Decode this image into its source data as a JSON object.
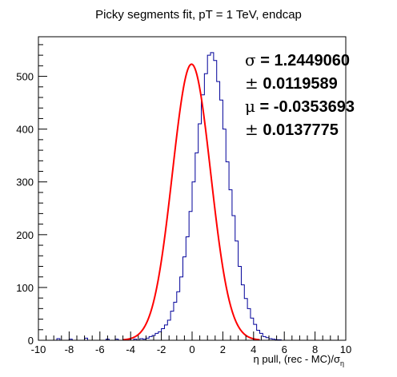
{
  "chart_data": {
    "type": "histogram",
    "title": "Picky segments fit, pT = 1 TeV, endcap",
    "xlabel": "η pull, (rec - MC)/σ",
    "xlabel_subscript": "η",
    "xlim": [
      -10,
      10
    ],
    "ylim": [
      0,
      575
    ],
    "x_ticks": [
      -10,
      -8,
      -6,
      -4,
      -2,
      0,
      2,
      4,
      6,
      8,
      10
    ],
    "x_tick_labels": [
      "-10",
      "-8",
      "-6",
      "-4",
      "-2",
      "0",
      "2",
      "4",
      "6",
      "8",
      "10"
    ],
    "y_ticks": [
      0,
      100,
      200,
      300,
      400,
      500
    ],
    "y_tick_labels": [
      "0",
      "100",
      "200",
      "300",
      "400",
      "500"
    ],
    "bin_width": 0.2,
    "bins_x_start": -10,
    "histogram_values": [
      0,
      0,
      0,
      0,
      0,
      0,
      3,
      0,
      0,
      0,
      2,
      0,
      0,
      0,
      0,
      4,
      0,
      0,
      0,
      0,
      0,
      0,
      2,
      0,
      0,
      2,
      0,
      0,
      0,
      2,
      0,
      2,
      0,
      3,
      2,
      4,
      7,
      9,
      13,
      16,
      22,
      29,
      38,
      55,
      72,
      92,
      120,
      158,
      196,
      244,
      300,
      355,
      410,
      465,
      505,
      540,
      545,
      530,
      490,
      455,
      400,
      338,
      285,
      236,
      188,
      140,
      105,
      79,
      60,
      42,
      30,
      19,
      13,
      7,
      5,
      3,
      2,
      1,
      1,
      0,
      0,
      0,
      0,
      0,
      0,
      0,
      0,
      0,
      0,
      0,
      0,
      0,
      0,
      0,
      0,
      0,
      0,
      0,
      0,
      0
    ],
    "fit": {
      "function": "gaussian",
      "amplitude": 523,
      "mean": -0.0353693,
      "sigma": 1.244906,
      "range": [
        -4.5,
        4.4
      ],
      "color": "#ff0000"
    },
    "histogram_color": "#000099",
    "stats": [
      {
        "symbol": "σ",
        "text": " = 1.2449060"
      },
      {
        "symbol": "±",
        "text": " 0.0119589"
      },
      {
        "symbol": "μ",
        "text": " = -0.0353693"
      },
      {
        "symbol": "±",
        "text": " 0.0137775"
      }
    ],
    "legend_position": "top-right"
  }
}
